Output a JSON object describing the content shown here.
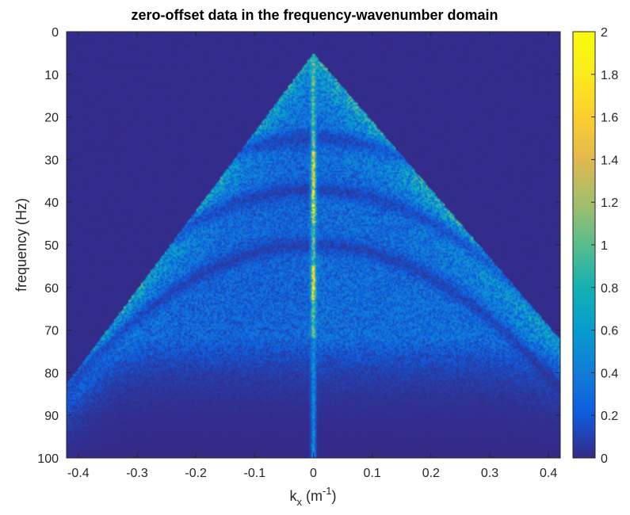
{
  "chart_data": {
    "type": "heatmap",
    "title": "zero-offset data in the frequency-wavenumber domain",
    "xlabel": {
      "base": "k",
      "sub": "x",
      "unit_open": " (m",
      "sup": "-1",
      "unit_close": ")"
    },
    "ylabel": "frequency (Hz)",
    "xlim": [
      -0.42,
      0.42
    ],
    "ylim": [
      0,
      100
    ],
    "y_reversed": true,
    "x_ticks": [
      -0.4,
      -0.3,
      -0.2,
      -0.1,
      0,
      0.1,
      0.2,
      0.3,
      0.4
    ],
    "x_tick_labels": [
      "-0.4",
      "-0.3",
      "-0.2",
      "-0.1",
      "0",
      "0.1",
      "0.2",
      "0.3",
      "0.4"
    ],
    "y_ticks": [
      0,
      10,
      20,
      30,
      40,
      50,
      60,
      70,
      80,
      90,
      100
    ],
    "y_tick_labels": [
      "0",
      "10",
      "20",
      "30",
      "40",
      "50",
      "60",
      "70",
      "80",
      "90",
      "100"
    ],
    "colormap": "parula",
    "background_color": "#352a87",
    "colorbar": {
      "range": [
        0,
        2
      ],
      "ticks": [
        0,
        0.2,
        0.4,
        0.6,
        0.8,
        1,
        1.2,
        1.4,
        1.6,
        1.8,
        2
      ],
      "tick_labels": [
        "0",
        "0.2",
        "0.4",
        "0.6",
        "0.8",
        "1",
        "1.2",
        "1.4",
        "1.6",
        "1.8",
        "2"
      ]
    },
    "features": {
      "apex_frequency_hz": 5,
      "cone_slope_left_hz_per_m1": 185,
      "cone_slope_right_hz_per_m1": 160,
      "dark_notches_at_k0_hz": [
        25,
        37,
        50
      ],
      "energy_upper_limit_hz": 72,
      "peak_column_k": 0.0
    },
    "grid": false
  }
}
